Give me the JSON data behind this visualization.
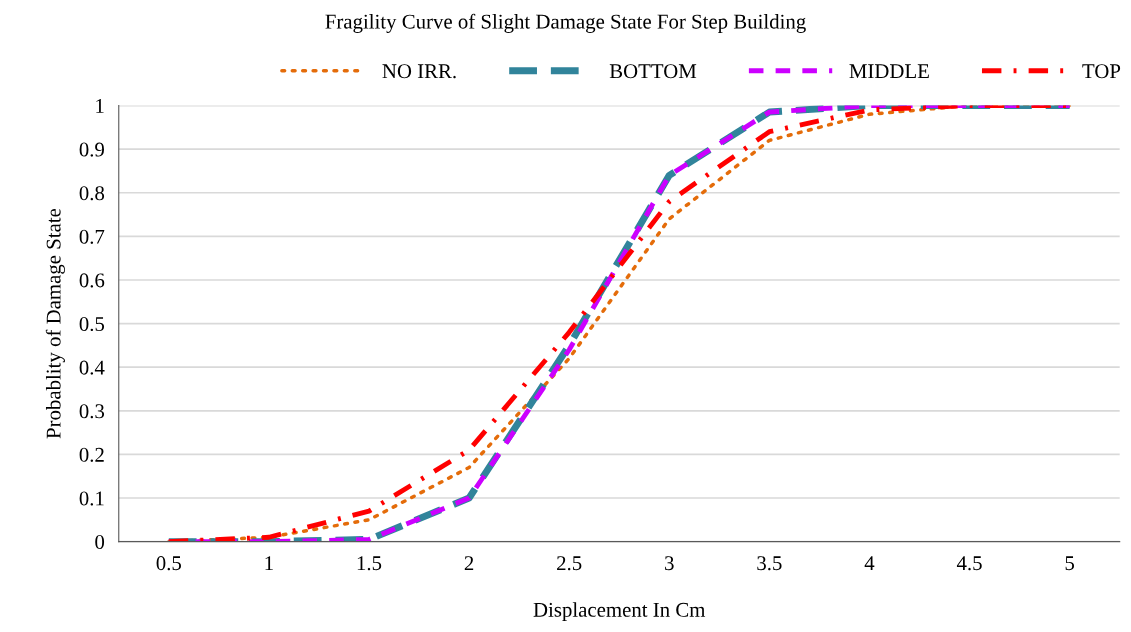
{
  "chart_data": {
    "type": "line",
    "title": "Fragility Curve of Slight Damage State For Step Building",
    "xlabel": "Displacement In Cm",
    "ylabel": "Probablity of Damage State",
    "x": [
      0.5,
      1,
      1.5,
      2,
      2.5,
      3,
      3.5,
      4,
      4.5,
      5
    ],
    "series": [
      {
        "name": "NO IRR.",
        "color": "#e46c0a",
        "line_style": "dotted",
        "values": [
          0,
          0.01,
          0.05,
          0.17,
          0.42,
          0.74,
          0.92,
          0.98,
          1.0,
          1.0
        ]
      },
      {
        "name": "BOTTOM",
        "color": "#31849b",
        "line_style": "dashed",
        "values": [
          0,
          0,
          0.005,
          0.1,
          0.45,
          0.84,
          0.985,
          1,
          1,
          1
        ]
      },
      {
        "name": "MIDDLE",
        "color": "#cc00ff",
        "line_style": "dashed",
        "values": [
          0,
          0,
          0.005,
          0.1,
          0.44,
          0.84,
          0.985,
          1,
          1,
          1
        ]
      },
      {
        "name": "TOP",
        "color": "#ff0000",
        "line_style": "dashdot",
        "values": [
          0,
          0.01,
          0.07,
          0.21,
          0.48,
          0.78,
          0.94,
          0.99,
          1,
          1
        ]
      }
    ],
    "xlim": [
      0.25,
      5.25
    ],
    "xticks": [
      0.5,
      1,
      1.5,
      2,
      2.5,
      3,
      3.5,
      4,
      4.5,
      5
    ],
    "ylim": [
      0,
      1
    ],
    "yticks": [
      0,
      0.1,
      0.2,
      0.3,
      0.4,
      0.5,
      0.6,
      0.7,
      0.8,
      0.9,
      1
    ],
    "grid": "y",
    "legend": "top right",
    "marker": "none"
  }
}
